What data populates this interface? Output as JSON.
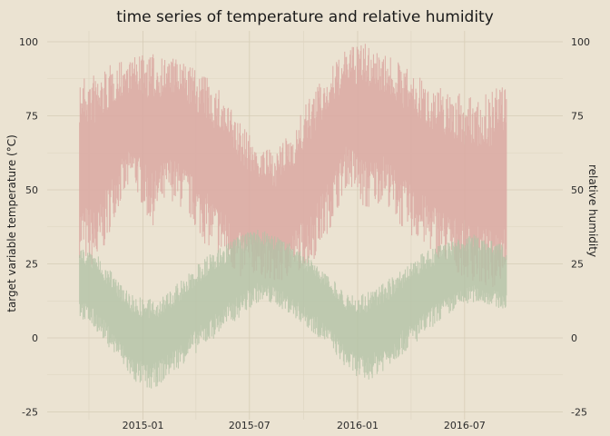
{
  "chart_data": {
    "type": "area",
    "title": "time series of temperature and relative humidity",
    "ylabel_left": "target variable temperature (°C)",
    "ylabel_right": "relative humidity",
    "ylim": [
      -25,
      100
    ],
    "y_ticks": [
      -25,
      0,
      25,
      50,
      75,
      100
    ],
    "y_tick_labels": [
      "-25",
      "0",
      "25",
      "50",
      "75",
      "100"
    ],
    "x_range": [
      "2014-09-15",
      "2016-09-10"
    ],
    "x_ticks": [
      "2015-01-01",
      "2015-07-01",
      "2016-01-01",
      "2016-07-01"
    ],
    "x_tick_labels": [
      "2015-01",
      "2015-07",
      "2016-01",
      "2016-07"
    ],
    "grid": true,
    "colors": {
      "humidity": "#dba8a2",
      "temperature": "#b3c2a6",
      "background": "#ebe3d2"
    },
    "series": [
      {
        "name": "relative humidity",
        "x": [
          "2014-09-15",
          "2014-10-15",
          "2014-11-15",
          "2014-12-15",
          "2015-01-15",
          "2015-02-15",
          "2015-03-15",
          "2015-04-15",
          "2015-05-15",
          "2015-06-15",
          "2015-07-15",
          "2015-08-15",
          "2015-09-15",
          "2015-10-15",
          "2015-11-15",
          "2015-12-15",
          "2016-01-15",
          "2016-02-15",
          "2016-03-15",
          "2016-04-15",
          "2016-05-15",
          "2016-06-15",
          "2016-07-15",
          "2016-08-15",
          "2016-09-10"
        ],
        "y_low": [
          30,
          25,
          45,
          55,
          40,
          50,
          45,
          35,
          30,
          22,
          25,
          20,
          25,
          28,
          40,
          55,
          45,
          50,
          40,
          35,
          30,
          25,
          22,
          18,
          25
        ],
        "y_high": [
          85,
          87,
          90,
          92,
          93,
          92,
          90,
          86,
          80,
          70,
          62,
          60,
          68,
          80,
          88,
          95,
          97,
          93,
          90,
          85,
          82,
          80,
          78,
          80,
          85
        ]
      },
      {
        "name": "target variable temperature",
        "x": [
          "2014-09-15",
          "2014-10-15",
          "2014-11-15",
          "2014-12-15",
          "2015-01-15",
          "2015-02-15",
          "2015-03-15",
          "2015-04-15",
          "2015-05-15",
          "2015-06-15",
          "2015-07-15",
          "2015-08-15",
          "2015-09-15",
          "2015-10-15",
          "2015-11-15",
          "2015-12-15",
          "2016-01-15",
          "2016-02-15",
          "2016-03-15",
          "2016-04-15",
          "2016-05-15",
          "2016-06-15",
          "2016-07-15",
          "2016-08-15",
          "2016-09-10"
        ],
        "y_low": [
          10,
          5,
          -3,
          -12,
          -15,
          -10,
          -5,
          0,
          5,
          10,
          15,
          14,
          10,
          5,
          0,
          -8,
          -12,
          -8,
          -3,
          2,
          8,
          12,
          15,
          14,
          12
        ],
        "y_high": [
          28,
          25,
          18,
          12,
          10,
          13,
          18,
          24,
          28,
          32,
          34,
          32,
          28,
          24,
          18,
          12,
          12,
          16,
          20,
          25,
          28,
          30,
          32,
          30,
          28
        ]
      }
    ]
  }
}
